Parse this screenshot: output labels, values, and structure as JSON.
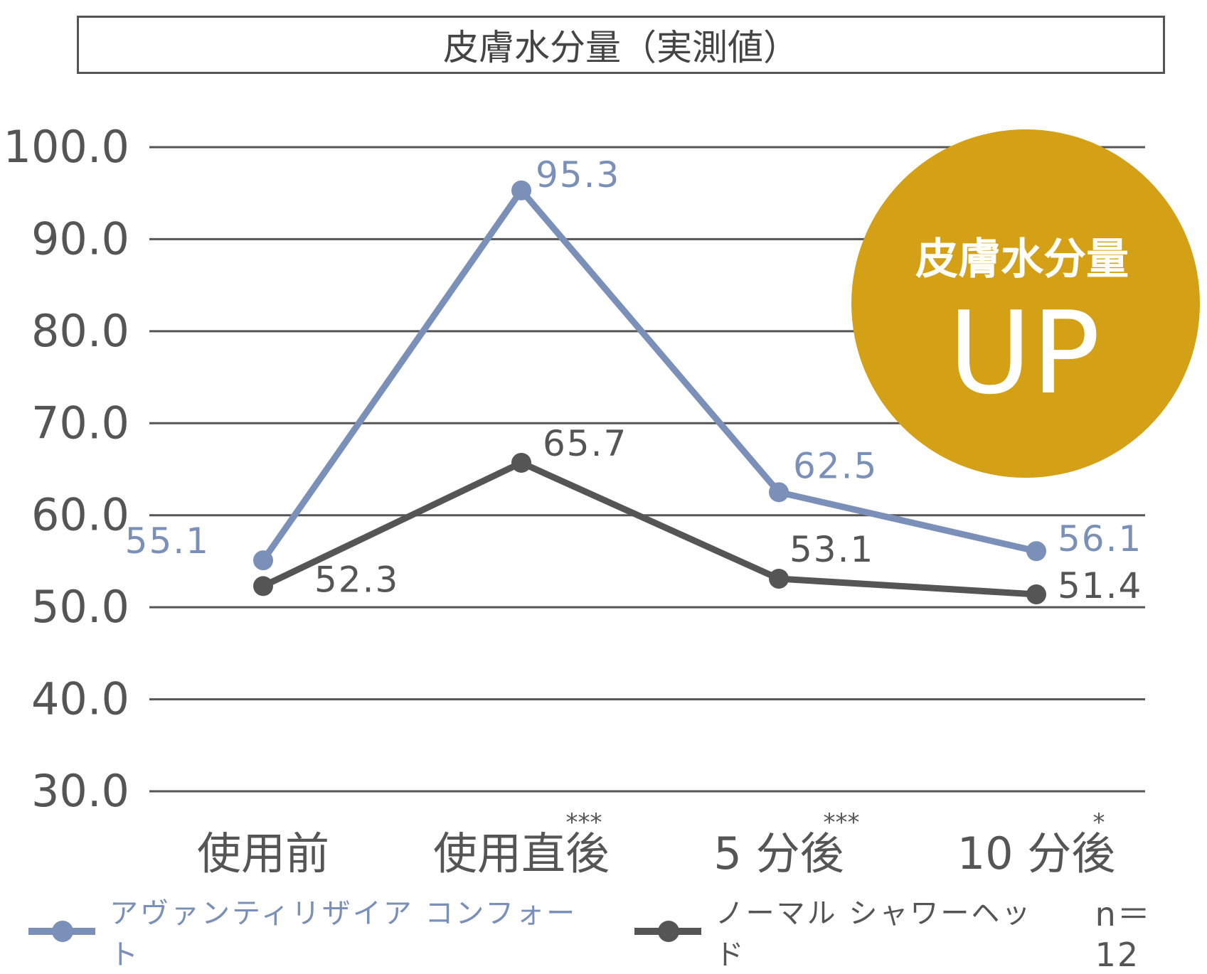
{
  "title": "皮膚水分量（実測値）",
  "badge": {
    "line1": "皮膚水分量",
    "line2": "UP",
    "color": "#D4A016"
  },
  "sample_size": "n＝12",
  "chart_data": {
    "type": "line",
    "title": "皮膚水分量（実測値）",
    "categories": [
      "使用前",
      "使用直後",
      "5 分後",
      "10 分後"
    ],
    "significance": [
      "",
      "***",
      "***",
      "*"
    ],
    "ylim": [
      30,
      100
    ],
    "yticks": [
      "30.0",
      "40.0",
      "50.0",
      "60.0",
      "70.0",
      "80.0",
      "90.0",
      "100.0"
    ],
    "grid": true,
    "legend_position": "bottom",
    "series": [
      {
        "name": "アヴァンティリザイア コンフォート",
        "color": "#7A90B8",
        "values": [
          55.1,
          95.3,
          62.5,
          56.1
        ],
        "labels": [
          "55.1",
          "95.3",
          "62.5",
          "56.1"
        ]
      },
      {
        "name": "ノーマル シャワーヘッド",
        "color": "#555555",
        "values": [
          52.3,
          65.7,
          53.1,
          51.4
        ],
        "labels": [
          "52.3",
          "65.7",
          "53.1",
          "51.4"
        ]
      }
    ]
  }
}
